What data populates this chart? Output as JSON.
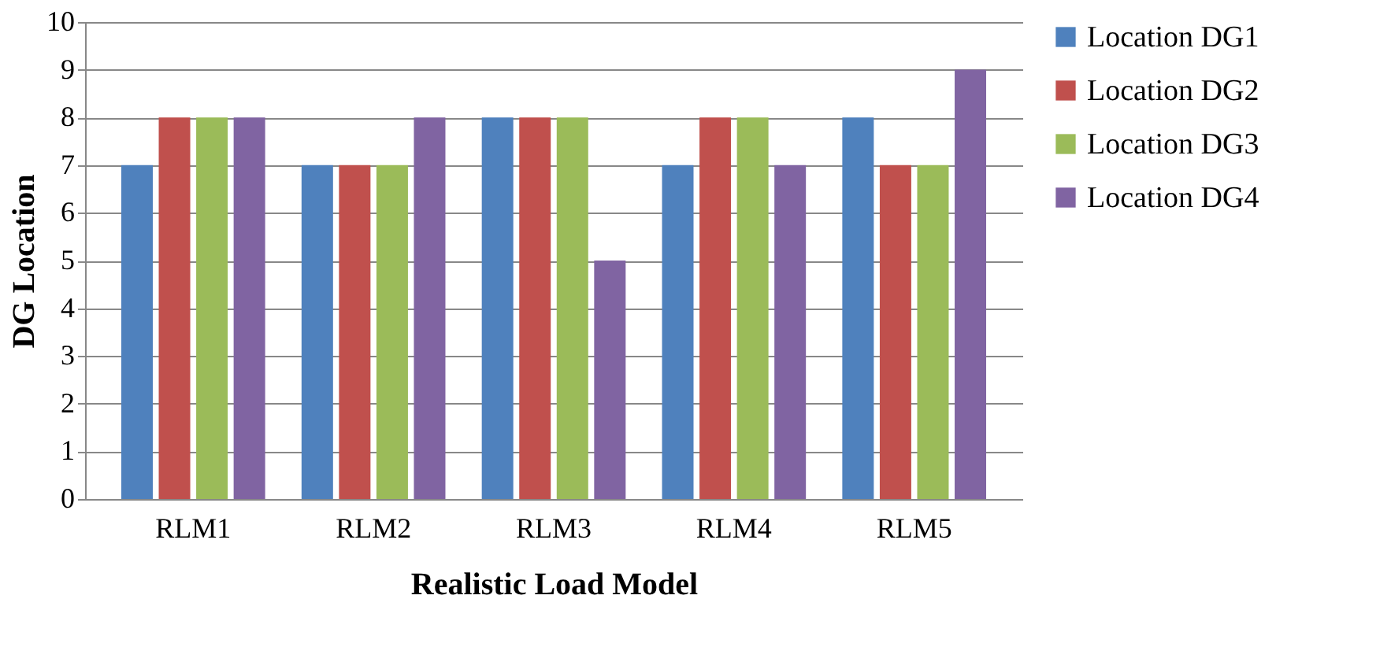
{
  "chart_data": {
    "type": "bar",
    "xlabel": "Realistic Load Model",
    "ylabel": "DG Location",
    "categories": [
      "RLM1",
      "RLM2",
      "RLM3",
      "RLM4",
      "RLM5"
    ],
    "series": [
      {
        "name": "Location DG1",
        "color": "#4f81bd",
        "values": [
          7,
          7,
          8,
          7,
          8
        ]
      },
      {
        "name": "Location DG2",
        "color": "#c0504d",
        "values": [
          8,
          7,
          8,
          8,
          7
        ]
      },
      {
        "name": "Location DG3",
        "color": "#9bbb59",
        "values": [
          8,
          7,
          8,
          8,
          7
        ]
      },
      {
        "name": "Location DG4",
        "color": "#8064a2",
        "values": [
          8,
          8,
          5,
          7,
          9
        ]
      }
    ],
    "ylim": [
      0,
      10
    ],
    "yticks": [
      0,
      1,
      2,
      3,
      4,
      5,
      6,
      7,
      8,
      9,
      10
    ],
    "grid": "y",
    "legend": "right"
  }
}
